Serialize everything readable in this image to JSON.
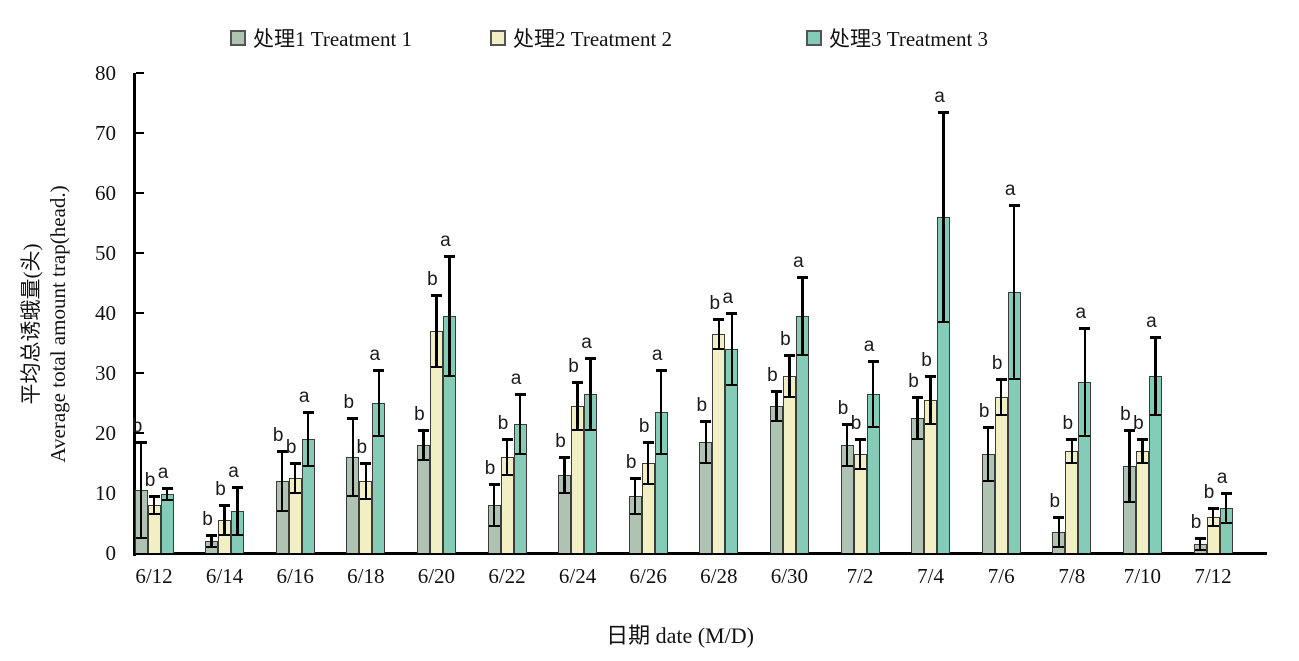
{
  "legend": {
    "items": [
      {
        "label": "处理1 Treatment 1"
      },
      {
        "label": "处理2 Treatment 2"
      },
      {
        "label": "处理3 Treatment 3"
      }
    ]
  },
  "axes": {
    "ylabel_line1": "平均总诱蛾量(头)",
    "ylabel_line2": "Average total amount trap(head.)",
    "xlabel": "日期 date (M/D)"
  },
  "colors": {
    "treatment1": "#afc3b2",
    "treatment2": "#f3efc5",
    "treatment3": "#84ccb8",
    "bar_border": "#3b3b3b",
    "axis": "#000000"
  },
  "chart_data": {
    "type": "bar",
    "title": "",
    "categories": [
      "6/12",
      "6/14",
      "6/16",
      "6/18",
      "6/20",
      "6/22",
      "6/24",
      "6/26",
      "6/28",
      "6/30",
      "7/2",
      "7/4",
      "7/6",
      "7/8",
      "7/10",
      "7/12"
    ],
    "series": [
      {
        "name": "处理1 Treatment 1",
        "color_key": "treatment1",
        "values": [
          10.5,
          2,
          12,
          16,
          18,
          8,
          13,
          9.5,
          18.5,
          24.5,
          18,
          22.5,
          16.5,
          3.5,
          14.5,
          1.5
        ],
        "errors": [
          8,
          1,
          5,
          6.5,
          2.5,
          3.5,
          3,
          3,
          3.5,
          2.5,
          3.5,
          3.5,
          4.5,
          2.5,
          6,
          1
        ],
        "letters": [
          "b",
          "b",
          "b",
          "b",
          "b",
          "b",
          "b",
          "b",
          "b",
          "b",
          "b",
          "b",
          "b",
          "b",
          "b",
          "b"
        ]
      },
      {
        "name": "处理2 Treatment 2",
        "color_key": "treatment2",
        "values": [
          8,
          5.5,
          12.5,
          12,
          37,
          16,
          24.5,
          15,
          36.5,
          29.5,
          16.5,
          25.5,
          26,
          17,
          17,
          6
        ],
        "errors": [
          1.5,
          2.5,
          2.5,
          3,
          6,
          3,
          4,
          3.5,
          2.5,
          3.5,
          2.5,
          4,
          3,
          2,
          2,
          1.5
        ],
        "letters": [
          "b",
          "b",
          "b",
          "b",
          "b",
          "b",
          "b",
          "b",
          "b",
          "b",
          "b",
          "b",
          "b",
          "b",
          "b",
          "b"
        ]
      },
      {
        "name": "处理3 Treatment 3",
        "color_key": "treatment3",
        "values": [
          9.8,
          7,
          19,
          25,
          39.5,
          21.5,
          26.5,
          23.5,
          34,
          39.5,
          26.5,
          56,
          43.5,
          28.5,
          29.5,
          7.5
        ],
        "errors": [
          1,
          4,
          4.5,
          5.5,
          10,
          5,
          6,
          7,
          6,
          6.5,
          5.5,
          17.5,
          14.5,
          9,
          6.5,
          2.5
        ],
        "letters": [
          "a",
          "a",
          "a",
          "a",
          "a",
          "a",
          "a",
          "a",
          "a",
          "a",
          "a",
          "a",
          "a",
          "a",
          "a",
          "a"
        ]
      }
    ],
    "xlabel": "日期 date (M/D)",
    "ylabel": "平均总诱蛾量(头) Average total amount trap(head.)",
    "ylim": [
      0,
      80
    ],
    "ytick_step": 10,
    "grid": false,
    "legend_position": "top",
    "error_bars": "both_directions_with_caps",
    "significance_letters": true
  }
}
